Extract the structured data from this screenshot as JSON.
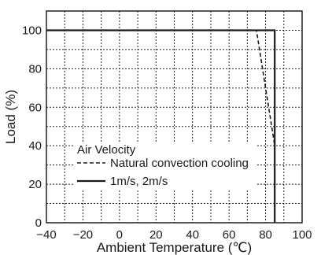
{
  "chart_data": {
    "type": "line",
    "xlabel": "Ambient Temperature (℃)",
    "ylabel": "Load (%)",
    "xlim": [
      -40,
      100
    ],
    "ylim": [
      0,
      110
    ],
    "x_ticks": [
      "−40",
      "−20",
      "0",
      "20",
      "40",
      "60",
      "80",
      "100"
    ],
    "y_ticks": [
      "0",
      "20",
      "40",
      "60",
      "80",
      "100"
    ],
    "grid": true,
    "legend_title": "Air Velocity",
    "legend_position": "bottom-left",
    "series": [
      {
        "name": "Natural convection cooling",
        "style": "dashed",
        "color": "#1a1a1a",
        "points": [
          [
            -40,
            100
          ],
          [
            75,
            100
          ],
          [
            85,
            40
          ],
          [
            85,
            0
          ]
        ]
      },
      {
        "name": "1m/s, 2m/s",
        "style": "solid",
        "color": "#1a1a1a",
        "points": [
          [
            -40,
            100
          ],
          [
            85,
            100
          ],
          [
            85,
            0
          ]
        ]
      }
    ]
  }
}
